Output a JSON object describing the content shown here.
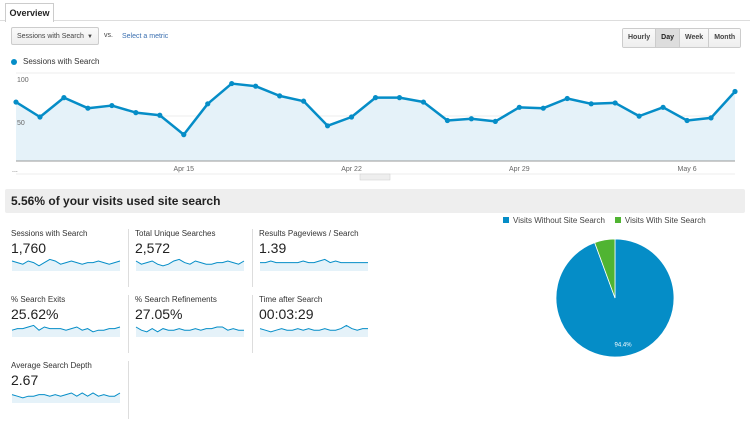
{
  "tabs": [
    {
      "label": "Overview"
    }
  ],
  "controls": {
    "metric_dropdown": "Sessions with Search",
    "vs": "vs.",
    "select_metric": "Select a metric",
    "time_buttons": [
      {
        "label": "Hourly",
        "active": false
      },
      {
        "label": "Day",
        "active": true
      },
      {
        "label": "Week",
        "active": false
      },
      {
        "label": "Month",
        "active": false
      }
    ]
  },
  "chart_data": [
    {
      "type": "area",
      "series": [
        {
          "name": "Sessions with Search",
          "color": "#058dc7",
          "values": [
            67,
            50,
            72,
            60,
            63,
            55,
            52,
            30,
            65,
            88,
            85,
            74,
            68,
            40,
            50,
            72,
            72,
            67,
            46,
            48,
            45,
            61,
            60,
            71,
            65,
            66,
            51,
            61,
            46,
            49,
            79
          ]
        }
      ],
      "x_start_label": "...",
      "x_tick_labels": [
        "Apr 15",
        "Apr 22",
        "Apr 29",
        "May 6"
      ],
      "x_tick_index": [
        7,
        14,
        21,
        28
      ],
      "y_tick_labels": [
        "100",
        "50"
      ],
      "ylim": [
        0,
        110
      ],
      "grid": true,
      "legend": "top-left"
    },
    {
      "type": "pie",
      "slices": [
        {
          "name": "Visits Without Site Search",
          "value": 94.4,
          "label": "94.4%",
          "color": "#058dc7"
        },
        {
          "name": "Visits With Site Search",
          "value": 5.6,
          "color": "#50b432"
        }
      ],
      "legend": "top"
    }
  ],
  "headline": "5.56% of your visits used site search",
  "metrics": [
    {
      "label": "Sessions with Search",
      "value": "1,760",
      "spark": [
        5,
        4,
        3,
        5,
        4,
        2,
        4,
        6,
        5,
        3,
        4,
        5,
        4,
        3,
        4,
        4,
        5,
        4,
        3,
        4,
        5
      ]
    },
    {
      "label": "Total Unique Searches",
      "value": "2,572",
      "spark": [
        5,
        3,
        4,
        5,
        3,
        2,
        3,
        5,
        6,
        4,
        3,
        5,
        4,
        3,
        3,
        4,
        4,
        5,
        4,
        3,
        5
      ]
    },
    {
      "label": "Results Pageviews / Search",
      "value": "1.39",
      "spark": [
        4,
        4,
        5,
        4,
        4,
        4,
        4,
        4,
        5,
        4,
        4,
        5,
        6,
        4,
        5,
        4,
        4,
        4,
        4,
        4,
        4
      ]
    },
    {
      "label": "% Search Exits",
      "value": "25.62%",
      "spark": [
        3,
        4,
        4,
        5,
        6,
        3,
        5,
        4,
        4,
        4,
        3,
        4,
        5,
        3,
        4,
        2,
        3,
        3,
        4,
        4,
        5
      ]
    },
    {
      "label": "% Search Refinements",
      "value": "27.05%",
      "spark": [
        5,
        3,
        2,
        4,
        2,
        4,
        3,
        3,
        4,
        3,
        3,
        4,
        3,
        4,
        4,
        5,
        5,
        3,
        4,
        3,
        3
      ]
    },
    {
      "label": "Time after Search",
      "value": "00:03:29",
      "spark": [
        4,
        3,
        2,
        3,
        4,
        3,
        3,
        4,
        3,
        4,
        3,
        3,
        4,
        3,
        3,
        4,
        6,
        4,
        3,
        4,
        4
      ]
    },
    {
      "label": "Average Search Depth",
      "value": "2.67",
      "spark": [
        4,
        3,
        2,
        3,
        3,
        4,
        4,
        3,
        4,
        3,
        4,
        5,
        3,
        5,
        3,
        5,
        3,
        4,
        3,
        3,
        5
      ]
    }
  ]
}
